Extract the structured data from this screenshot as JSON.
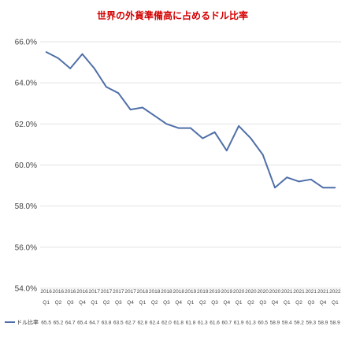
{
  "chart_data": {
    "type": "line",
    "title": "世界の外貨準備高に占めるドル比率",
    "xlabel": "",
    "ylabel": "",
    "ylim": [
      54.0,
      66.0
    ],
    "yticks": [
      "54.0%",
      "56.0%",
      "58.0%",
      "60.0%",
      "62.0%",
      "64.0%",
      "66.0%"
    ],
    "ytick_values": [
      54,
      56,
      58,
      60,
      62,
      64,
      66
    ],
    "grid": true,
    "legend_position": "bottom-left",
    "x_years": [
      "2016",
      "2016",
      "2016",
      "2016",
      "2017",
      "2017",
      "2017",
      "2017",
      "2018",
      "2018",
      "2018",
      "2018",
      "2019",
      "2019",
      "2019",
      "2019",
      "2020",
      "2020",
      "2020",
      "2020",
      "2021",
      "2021",
      "2021",
      "2021",
      "2022"
    ],
    "x_quarters": [
      "Q1",
      "Q2",
      "Q3",
      "Q4",
      "Q1",
      "Q2",
      "Q3",
      "Q4",
      "Q1",
      "Q2",
      "Q3",
      "Q4",
      "Q1",
      "Q2",
      "Q3",
      "Q4",
      "Q1",
      "Q2",
      "Q3",
      "Q4",
      "Q1",
      "Q2",
      "Q3",
      "Q4",
      "Q1"
    ],
    "series": [
      {
        "name": "ドル比率",
        "color": "#4f6fa8",
        "values": [
          65.5,
          65.2,
          64.7,
          65.4,
          64.7,
          63.8,
          63.5,
          62.7,
          62.8,
          62.4,
          62.0,
          61.8,
          61.8,
          61.3,
          61.6,
          60.7,
          61.9,
          61.3,
          60.5,
          58.9,
          59.4,
          59.2,
          59.3,
          58.9,
          58.9
        ],
        "labels": [
          "65.5",
          "65.2",
          "64.7",
          "65.4",
          "64.7",
          "63.8",
          "63.5",
          "62.7",
          "62.8",
          "62.4",
          "62.0",
          "61.8",
          "61.8",
          "61.3",
          "61.6",
          "60.7",
          "61.9",
          "61.3",
          "60.5",
          "58.9",
          "59.4",
          "59.2",
          "59.3",
          "58.9",
          "58.9"
        ]
      }
    ]
  }
}
